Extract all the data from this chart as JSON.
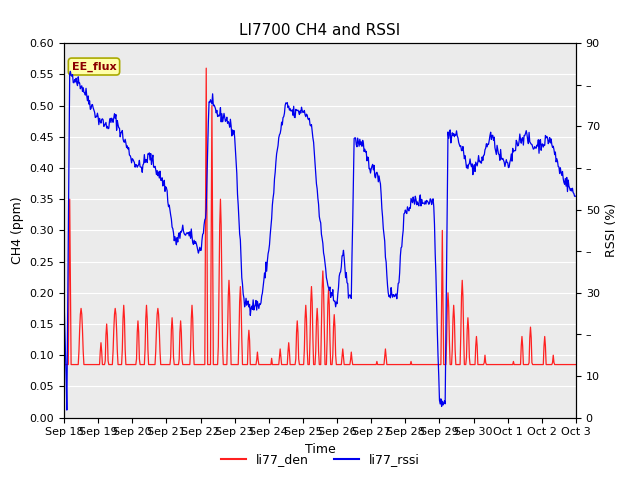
{
  "title": "LI7700 CH4 and RSSI",
  "xlabel": "Time",
  "ylabel_left": "CH4 (ppm)",
  "ylabel_right": "RSSI (%)",
  "ylim_left": [
    0.0,
    0.6
  ],
  "ylim_right": [
    0,
    90
  ],
  "yticks_left": [
    0.0,
    0.05,
    0.1,
    0.15,
    0.2,
    0.25,
    0.3,
    0.35,
    0.4,
    0.45,
    0.5,
    0.55,
    0.6
  ],
  "yticks_right": [
    0,
    10,
    20,
    30,
    40,
    50,
    60,
    70,
    80,
    90
  ],
  "annotation_text": "EE_flux",
  "color_ch4": "#FF2020",
  "color_rssi": "#0000EE",
  "legend_items": [
    "li77_den",
    "li77_rssi"
  ],
  "background_color": "#EBEBEB",
  "fig_background": "#FFFFFF",
  "grid_color": "#FFFFFF",
  "title_fontsize": 11,
  "label_fontsize": 9,
  "tick_fontsize": 8
}
